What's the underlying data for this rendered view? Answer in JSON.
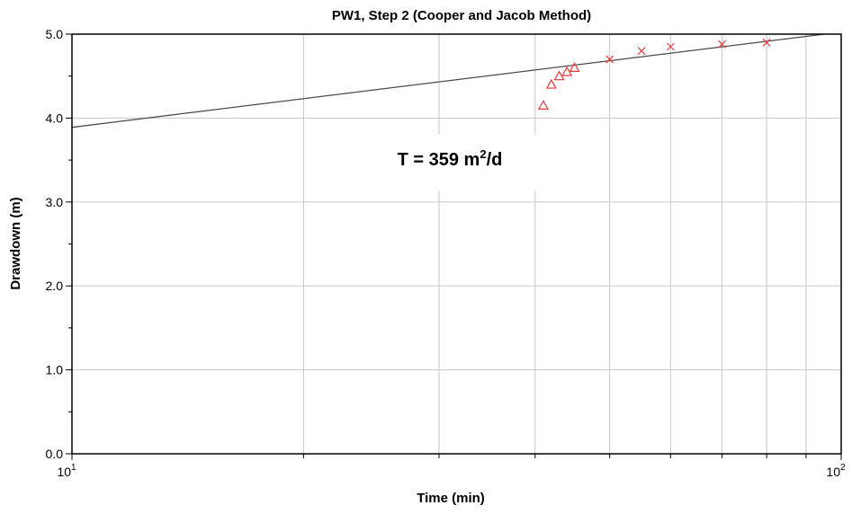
{
  "chart_data": {
    "type": "scatter",
    "title": "PW1, Step 2 (Cooper and Jacob Method)",
    "xlabel": "Time (min)",
    "ylabel": "Drawdown (m)",
    "x_scale": "log",
    "xlim": [
      10,
      100
    ],
    "ylim": [
      0.0,
      5.0
    ],
    "x_tick_labels": [
      {
        "value": 10,
        "base": "10",
        "exp": "1"
      },
      {
        "value": 100,
        "base": "10",
        "exp": "2"
      }
    ],
    "y_tick_labels": [
      "0.0",
      "1.0",
      "2.0",
      "3.0",
      "4.0",
      "5.0"
    ],
    "y_minor_step": 0.5,
    "grid": true,
    "annotation": {
      "prefix": "T = 359 m",
      "sup": "2",
      "suffix": "/d"
    },
    "fit_line": {
      "x": [
        10,
        95
      ],
      "y": [
        3.89,
        5.0
      ]
    },
    "series": [
      {
        "marker": "triangle",
        "color": "#e83a3a",
        "x": [
          41,
          42,
          43,
          44,
          45
        ],
        "y": [
          4.15,
          4.4,
          4.5,
          4.55,
          4.6
        ]
      },
      {
        "marker": "x",
        "color": "#e83a3a",
        "x": [
          50,
          55,
          60,
          70,
          80
        ],
        "y": [
          4.7,
          4.8,
          4.85,
          4.88,
          4.9
        ]
      }
    ]
  }
}
